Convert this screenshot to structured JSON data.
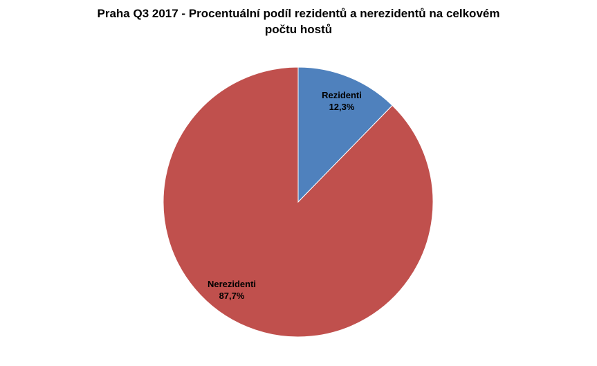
{
  "chart_data": {
    "type": "pie",
    "title_line1": "Praha Q3 2017 - Procentuální  podíl rezidentů  a nerezidentů  na celkovém",
    "title_line2": "počtu hostů",
    "slices": [
      {
        "name": "Rezidenti",
        "value": 12.3,
        "label": "12,3%",
        "color": "#4f81bd"
      },
      {
        "name": "Nerezidenti",
        "value": 87.7,
        "label": "87,7%",
        "color": "#c0504d"
      }
    ],
    "start_angle": "12 o'clock",
    "direction": "clockwise",
    "legend": "none"
  }
}
